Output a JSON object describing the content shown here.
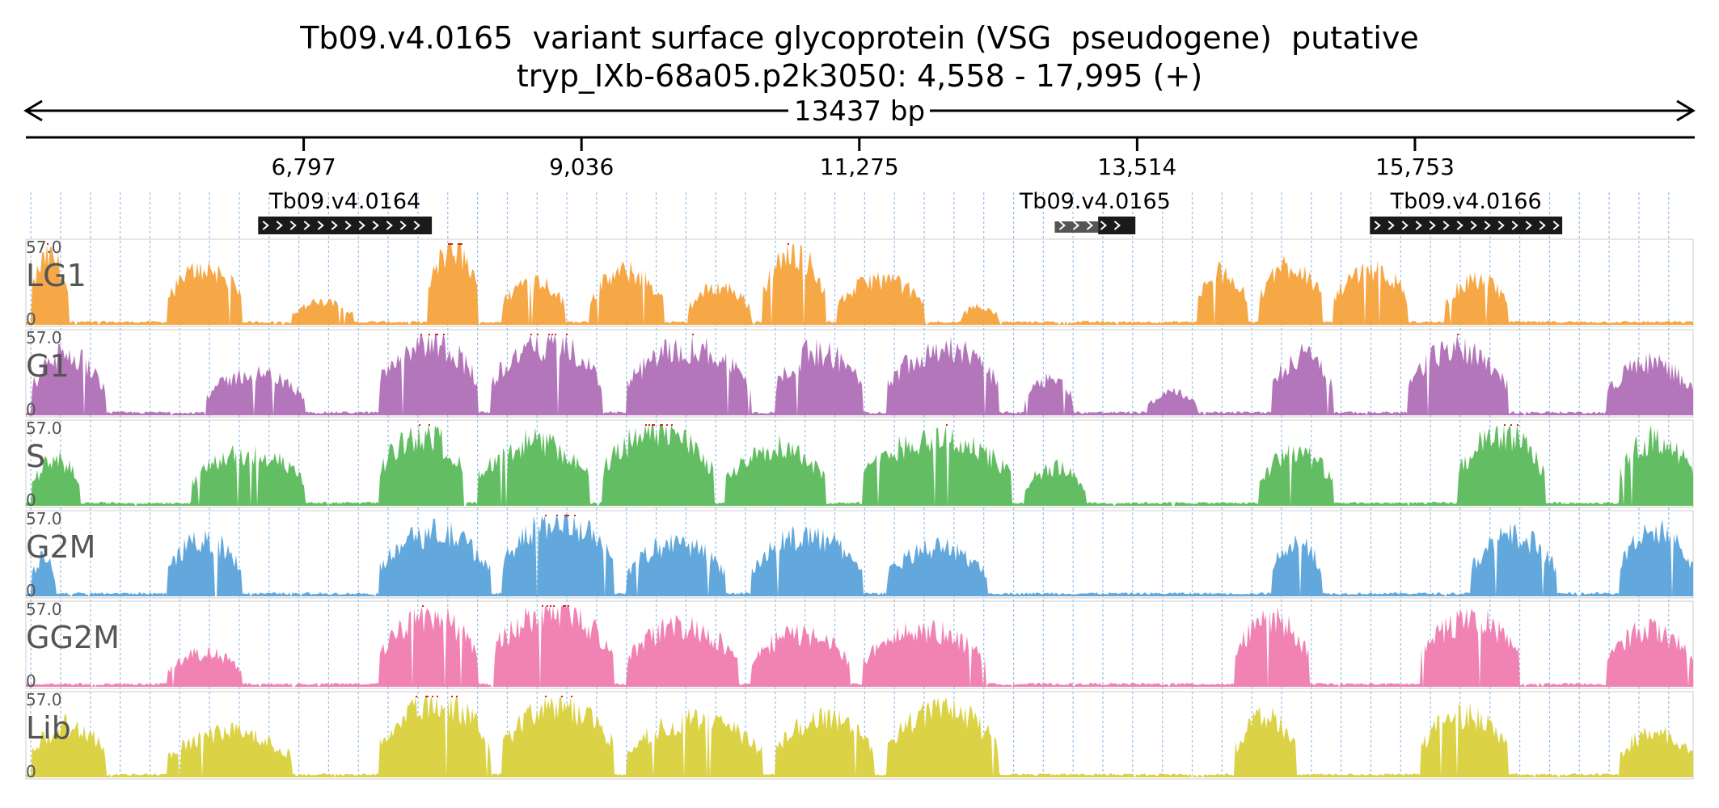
{
  "header": {
    "title": "Tb09.v4.0165  variant surface glycoprotein (VSG  pseudogene)  putative",
    "location": "tryp_IXb-68a05.p2k3050: 4,558 - 17,995 (+)",
    "span_label": "13437 bp"
  },
  "region": {
    "start": 4558,
    "end": 17995
  },
  "ticks": [
    {
      "pos": 6797,
      "label": "6,797"
    },
    {
      "pos": 9036,
      "label": "9,036"
    },
    {
      "pos": 11275,
      "label": "11,275"
    },
    {
      "pos": 13514,
      "label": "13,514"
    },
    {
      "pos": 15753,
      "label": "15,753"
    }
  ],
  "genes": [
    {
      "name": "Tb09.v4.0164",
      "start": 6430,
      "end": 7830,
      "strand": "+"
    },
    {
      "name": "Tb09.v4.0165",
      "start": 12850,
      "end": 13500,
      "strand": "+",
      "utr_end": 13200
    },
    {
      "name": "Tb09.v4.0166",
      "start": 15390,
      "end": 16940,
      "strand": "+"
    }
  ],
  "tracks": [
    {
      "name": "LG1",
      "max": "57.0",
      "min": "0",
      "color": "#f5a23c"
    },
    {
      "name": "G1",
      "max": "57.0",
      "min": "0",
      "color": "#b06fb6"
    },
    {
      "name": "S",
      "max": "57.0",
      "min": "0",
      "color": "#5bbb5b"
    },
    {
      "name": "G2M",
      "max": "57.0",
      "min": "0",
      "color": "#5aa3da"
    },
    {
      "name": "GG2M",
      "max": "57.0",
      "min": "0",
      "color": "#ef7cb0"
    },
    {
      "name": "Lib",
      "max": "57.0",
      "min": "0",
      "color": "#d9d03c"
    }
  ],
  "colors": {
    "clip": "#cc2222",
    "grid": "#7aaee0",
    "gene_box": "#1a1a1a",
    "utr_box": "#555555"
  }
}
